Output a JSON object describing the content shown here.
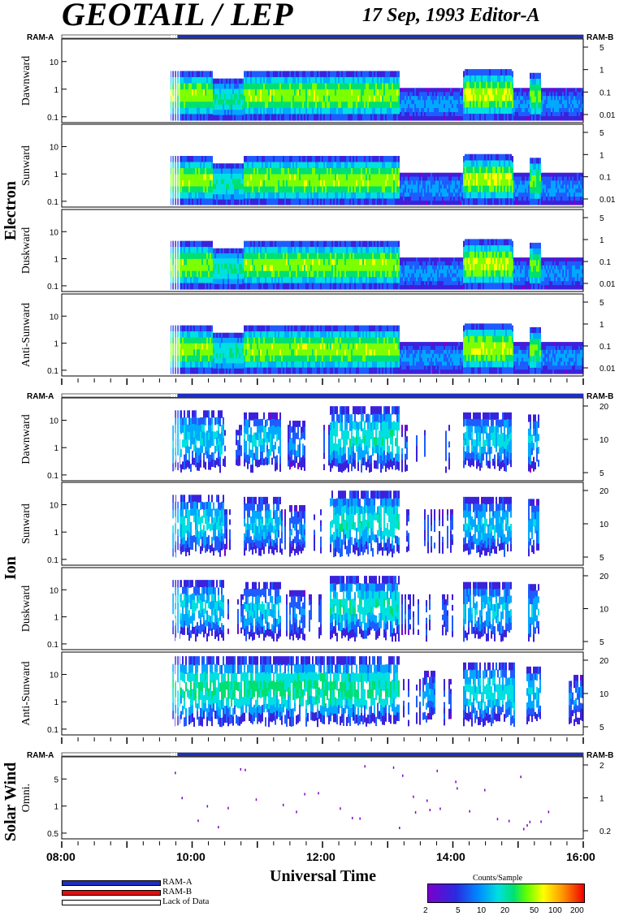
{
  "header": {
    "title": "GEOTAIL / LEP",
    "subtitle": "17 Sep, 1993   Editor-A"
  },
  "groups": [
    {
      "id": "electron",
      "label": "Electron"
    },
    {
      "id": "ion",
      "label": "Ion"
    },
    {
      "id": "sw",
      "label": "Solar Wind"
    }
  ],
  "ram": {
    "a": "RAM-A",
    "b": "RAM-B"
  },
  "panels": [
    {
      "id": "e1",
      "label": "Dawnward"
    },
    {
      "id": "e2",
      "label": "Sunward"
    },
    {
      "id": "e3",
      "label": "Duskward"
    },
    {
      "id": "e4",
      "label": "Anti-Sunward"
    },
    {
      "id": "i1",
      "label": "Dawnward"
    },
    {
      "id": "i2",
      "label": "Sunward"
    },
    {
      "id": "i3",
      "label": "Duskward"
    },
    {
      "id": "i4",
      "label": "Anti-Sunward"
    },
    {
      "id": "s1",
      "label": "Omni."
    }
  ],
  "chart_data": {
    "type": "heatmap",
    "title": "GEOTAIL / LEP",
    "subtitle": "17 Sep, 1993   Editor-A",
    "xlabel": "Universal Time",
    "x_ticks": [
      "08:00",
      "10:00",
      "12:00",
      "14:00",
      "16:00"
    ],
    "x_range_hours": [
      8,
      16
    ],
    "data_start_hour": 9.68,
    "electron_left_ticks": [
      "10",
      "1",
      "0.1"
    ],
    "electron_right_ticks": [
      "5",
      "1",
      "0.1",
      "0.01"
    ],
    "ion_left_ticks": [
      "10",
      "1",
      "0.1"
    ],
    "ion_right_ticks": [
      "20",
      "10",
      "5"
    ],
    "sw_left_ticks": [
      "5",
      "1",
      "0.5"
    ],
    "sw_right_ticks": [
      "2",
      "1",
      "0.2"
    ],
    "colorbar": {
      "label": "Counts/Sample",
      "ticks": [
        "2",
        "5",
        "10",
        "20",
        "50",
        "100",
        "200"
      ]
    },
    "legend": [
      {
        "label": "RAM-A",
        "color": "#1e2fbf"
      },
      {
        "label": "RAM-B",
        "color": "#dd1111"
      },
      {
        "label": "Lack of Data",
        "color": "#ffffff"
      }
    ]
  }
}
